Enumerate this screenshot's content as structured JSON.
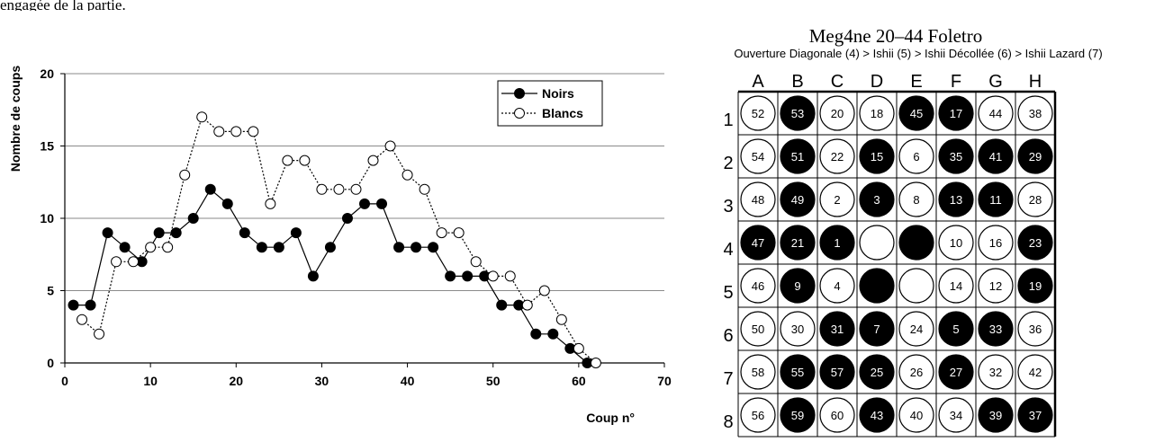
{
  "top_caption": "engagée de la partie.",
  "chart_data": {
    "type": "line",
    "xlabel": "Coup n°",
    "ylabel": "Nombre de coups",
    "xlim": [
      0,
      70
    ],
    "ylim": [
      0,
      20
    ],
    "xticks": [
      0,
      10,
      20,
      30,
      40,
      50,
      60,
      70
    ],
    "yticks": [
      0,
      5,
      10,
      15,
      20
    ],
    "grid": "horizontal",
    "legend": "top-right",
    "series": [
      {
        "name": "Noirs",
        "color": "#000000",
        "marker": "filled",
        "line": "solid",
        "x": [
          1,
          3,
          5,
          7,
          9,
          11,
          13,
          15,
          17,
          19,
          21,
          23,
          25,
          27,
          29,
          31,
          33,
          35,
          37,
          39,
          41,
          43,
          45,
          47,
          49,
          51,
          53,
          55,
          57,
          59,
          61
        ],
        "y": [
          4,
          4,
          9,
          8,
          7,
          9,
          9,
          10,
          12,
          11,
          9,
          8,
          8,
          9,
          6,
          8,
          10,
          11,
          11,
          8,
          8,
          8,
          6,
          6,
          6,
          4,
          4,
          2,
          2,
          1,
          0
        ]
      },
      {
        "name": "Blancs",
        "color": "#000000",
        "marker": "open",
        "line": "dotted",
        "x": [
          2,
          4,
          6,
          8,
          10,
          12,
          14,
          16,
          18,
          20,
          22,
          24,
          26,
          28,
          30,
          32,
          34,
          36,
          38,
          40,
          42,
          44,
          46,
          48,
          50,
          52,
          54,
          56,
          58,
          60,
          62
        ],
        "y": [
          3,
          2,
          7,
          7,
          8,
          8,
          13,
          17,
          16,
          16,
          16,
          11,
          14,
          14,
          12,
          12,
          12,
          14,
          15,
          13,
          12,
          9,
          9,
          7,
          6,
          6,
          4,
          5,
          3,
          1,
          0
        ]
      }
    ]
  },
  "board": {
    "title": "Meg4ne 20–44 Foletro",
    "opening": "Ouverture Diagonale (4) > Ishii (5) > Ishii Décollée (6) > Ishii Lazard (7)",
    "columns": [
      "A",
      "B",
      "C",
      "D",
      "E",
      "F",
      "G",
      "H"
    ],
    "rows": [
      "1",
      "2",
      "3",
      "4",
      "5",
      "6",
      "7",
      "8"
    ],
    "cells": [
      [
        {
          "c": "w",
          "n": "52"
        },
        {
          "c": "b",
          "n": "53"
        },
        {
          "c": "w",
          "n": "20"
        },
        {
          "c": "w",
          "n": "18"
        },
        {
          "c": "b",
          "n": "45"
        },
        {
          "c": "b",
          "n": "17"
        },
        {
          "c": "w",
          "n": "44"
        },
        {
          "c": "w",
          "n": "38"
        }
      ],
      [
        {
          "c": "w",
          "n": "54"
        },
        {
          "c": "b",
          "n": "51"
        },
        {
          "c": "w",
          "n": "22"
        },
        {
          "c": "b",
          "n": "15"
        },
        {
          "c": "w",
          "n": "6"
        },
        {
          "c": "b",
          "n": "35"
        },
        {
          "c": "b",
          "n": "41"
        },
        {
          "c": "b",
          "n": "29"
        }
      ],
      [
        {
          "c": "w",
          "n": "48"
        },
        {
          "c": "b",
          "n": "49"
        },
        {
          "c": "w",
          "n": "2"
        },
        {
          "c": "b",
          "n": "3"
        },
        {
          "c": "w",
          "n": "8"
        },
        {
          "c": "b",
          "n": "13"
        },
        {
          "c": "b",
          "n": "11"
        },
        {
          "c": "w",
          "n": "28"
        }
      ],
      [
        {
          "c": "b",
          "n": "47"
        },
        {
          "c": "b",
          "n": "21"
        },
        {
          "c": "b",
          "n": "1"
        },
        {
          "c": "w",
          "n": ""
        },
        {
          "c": "b",
          "n": ""
        },
        {
          "c": "w",
          "n": "10"
        },
        {
          "c": "w",
          "n": "16"
        },
        {
          "c": "b",
          "n": "23"
        }
      ],
      [
        {
          "c": "w",
          "n": "46"
        },
        {
          "c": "b",
          "n": "9"
        },
        {
          "c": "w",
          "n": "4"
        },
        {
          "c": "b",
          "n": ""
        },
        {
          "c": "w",
          "n": ""
        },
        {
          "c": "w",
          "n": "14"
        },
        {
          "c": "w",
          "n": "12"
        },
        {
          "c": "b",
          "n": "19"
        }
      ],
      [
        {
          "c": "w",
          "n": "50"
        },
        {
          "c": "w",
          "n": "30"
        },
        {
          "c": "b",
          "n": "31"
        },
        {
          "c": "b",
          "n": "7"
        },
        {
          "c": "w",
          "n": "24"
        },
        {
          "c": "b",
          "n": "5"
        },
        {
          "c": "b",
          "n": "33"
        },
        {
          "c": "w",
          "n": "36"
        }
      ],
      [
        {
          "c": "w",
          "n": "58"
        },
        {
          "c": "b",
          "n": "55"
        },
        {
          "c": "b",
          "n": "57"
        },
        {
          "c": "b",
          "n": "25"
        },
        {
          "c": "w",
          "n": "26"
        },
        {
          "c": "b",
          "n": "27"
        },
        {
          "c": "w",
          "n": "32"
        },
        {
          "c": "w",
          "n": "42"
        }
      ],
      [
        {
          "c": "w",
          "n": "56"
        },
        {
          "c": "b",
          "n": "59"
        },
        {
          "c": "w",
          "n": "60"
        },
        {
          "c": "b",
          "n": "43"
        },
        {
          "c": "w",
          "n": "40"
        },
        {
          "c": "w",
          "n": "34"
        },
        {
          "c": "b",
          "n": "39"
        },
        {
          "c": "b",
          "n": "37"
        }
      ]
    ]
  }
}
